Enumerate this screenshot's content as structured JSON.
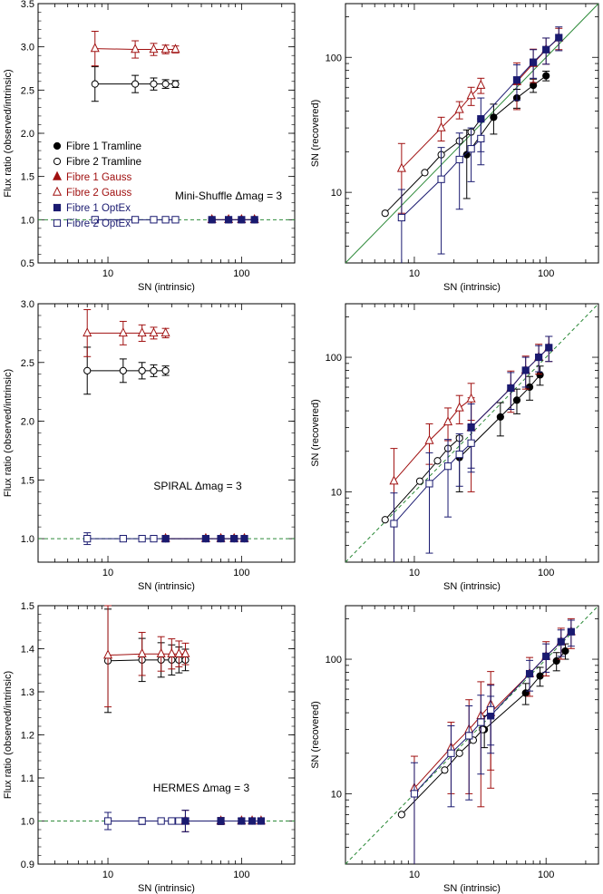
{
  "figure": {
    "xlabel": "SN (intrinsic)",
    "ylabel_ratio": "Flux ratio (observed/intrinsic)",
    "ylabel_sn": "SN (recovered)"
  },
  "legend": [
    {
      "label": "Fibre 1 Tramline",
      "marker": "filled-circle",
      "color": "#000000"
    },
    {
      "label": "Fibre 2 Tramline",
      "marker": "open-circle",
      "color": "#000000"
    },
    {
      "label": "Fibre 1 Gauss",
      "marker": "filled-triangle",
      "color": "#a01010"
    },
    {
      "label": "Fibre 2 Gauss",
      "marker": "open-triangle",
      "color": "#a01010"
    },
    {
      "label": "Fibre 1 OptEx",
      "marker": "filled-square",
      "color": "#1a1a70"
    },
    {
      "label": "Fibre 2 OptEx",
      "marker": "open-square",
      "color": "#1a1a70"
    }
  ],
  "colors": {
    "tramline": "#000000",
    "gauss": "#a01010",
    "optex": "#1a1a70",
    "refline_solid": "#2e8b3a",
    "refline_dashed": "#2e8b3a"
  },
  "chart_data": [
    {
      "type": "scatter",
      "panel": "mini-shuffle-ratio",
      "annotation": "Mini-Shuffle Δmag = 3",
      "xlabel": "SN (intrinsic)",
      "ylabel": "Flux ratio (observed/intrinsic)",
      "xscale": "log",
      "xlim": [
        3,
        250
      ],
      "ylim": [
        0.5,
        3.5
      ],
      "yticks": [
        "0.5",
        "1.0",
        "1.5",
        "2.0",
        "2.5",
        "3.0",
        "3.5"
      ],
      "xticks": [
        "10",
        "100"
      ],
      "refline": {
        "y": 1.0,
        "style": "dashed"
      },
      "series": [
        {
          "name": "Fibre 2 Tramline",
          "x": [
            8,
            16,
            22,
            27,
            32
          ],
          "y": [
            2.57,
            2.57,
            2.57,
            2.57,
            2.57
          ],
          "err": [
            0.2,
            0.1,
            0.07,
            0.05,
            0.04
          ]
        },
        {
          "name": "Fibre 2 Gauss",
          "x": [
            8,
            16,
            22,
            27,
            32
          ],
          "y": [
            2.98,
            2.97,
            2.97,
            2.97,
            2.97
          ],
          "err": [
            0.2,
            0.1,
            0.07,
            0.05,
            0.04
          ]
        },
        {
          "name": "Fibre 2 OptEx",
          "x": [
            8,
            16,
            22,
            27,
            32
          ],
          "y": [
            1.0,
            1.0,
            1.0,
            1.0,
            1.0
          ],
          "err": [
            0.03,
            0.015,
            0.01,
            0.008,
            0.006
          ]
        },
        {
          "name": "Fibre 1 Tramline",
          "x": [
            60,
            80,
            100,
            125
          ],
          "y": [
            1.0,
            1.0,
            1.0,
            1.0
          ],
          "err": [
            0.01,
            0.008,
            0.006,
            0.005
          ]
        },
        {
          "name": "Fibre 1 Gauss",
          "x": [
            60,
            80,
            100,
            125
          ],
          "y": [
            1.0,
            1.0,
            1.0,
            1.0
          ],
          "err": [
            0.01,
            0.008,
            0.006,
            0.005
          ]
        },
        {
          "name": "Fibre 1 OptEx",
          "x": [
            60,
            80,
            100,
            125
          ],
          "y": [
            1.0,
            1.0,
            1.0,
            1.0
          ],
          "err": [
            0.01,
            0.008,
            0.006,
            0.005
          ]
        }
      ]
    },
    {
      "type": "scatter",
      "panel": "mini-shuffle-sn",
      "xlabel": "SN (intrinsic)",
      "ylabel": "SN (recovered)",
      "xscale": "log",
      "yscale": "log",
      "xlim": [
        3,
        250
      ],
      "ylim": [
        3,
        250
      ],
      "xticks": [
        "10",
        "100"
      ],
      "yticks": [
        "10",
        "100"
      ],
      "refline": {
        "slope": 1,
        "style": "solid"
      },
      "series": [
        {
          "name": "Fibre 1 Tramline",
          "x": [
            25,
            40,
            60,
            80,
            100
          ],
          "y": [
            19,
            36,
            50,
            62,
            73
          ],
          "err": [
            10,
            9,
            8,
            7,
            6
          ]
        },
        {
          "name": "Fibre 2 Tramline",
          "x": [
            6,
            12,
            16,
            22,
            27,
            32
          ],
          "y": [
            7,
            14,
            19,
            24,
            28,
            35
          ],
          "err": [
            0,
            0,
            0,
            0,
            0,
            0
          ]
        },
        {
          "name": "Fibre 1 Gauss",
          "x": [
            60,
            80,
            100,
            125
          ],
          "y": [
            66,
            90,
            114,
            139
          ],
          "err": [
            25,
            25,
            25,
            25
          ]
        },
        {
          "name": "Fibre 2 Gauss",
          "x": [
            8,
            16,
            22,
            27,
            32
          ],
          "y": [
            15,
            30,
            41,
            52,
            62
          ],
          "err": [
            8,
            6,
            6,
            8,
            8
          ]
        },
        {
          "name": "Fibre 1 OptEx",
          "x": [
            32,
            60,
            80,
            100,
            125
          ],
          "y": [
            35,
            68,
            92,
            114,
            140
          ],
          "err": [
            15,
            20,
            22,
            25,
            28
          ]
        },
        {
          "name": "Fibre 2 OptEx",
          "x": [
            8,
            16,
            22,
            27,
            32
          ],
          "y": [
            6.5,
            12.5,
            17.5,
            21,
            25
          ],
          "err": [
            4,
            9,
            10,
            9,
            9
          ]
        }
      ]
    },
    {
      "type": "scatter",
      "panel": "spiral-ratio",
      "annotation": "SPIRAL Δmag = 3",
      "xlabel": "SN (intrinsic)",
      "ylabel": "Flux ratio (observed/intrinsic)",
      "xscale": "log",
      "xlim": [
        3,
        250
      ],
      "ylim": [
        0.8,
        3.0
      ],
      "yticks": [
        "1.0",
        "1.5",
        "2.0",
        "2.5",
        "3.0"
      ],
      "xticks": [
        "10",
        "100"
      ],
      "refline": {
        "y": 1.0,
        "style": "dashed"
      },
      "series": [
        {
          "name": "Fibre 2 Tramline",
          "x": [
            7,
            13,
            18,
            22,
            27
          ],
          "y": [
            2.43,
            2.43,
            2.43,
            2.43,
            2.43
          ],
          "err": [
            0.2,
            0.1,
            0.07,
            0.05,
            0.04
          ]
        },
        {
          "name": "Fibre 2 Gauss",
          "x": [
            7,
            13,
            18,
            22,
            27
          ],
          "y": [
            2.75,
            2.75,
            2.75,
            2.75,
            2.75
          ],
          "err": [
            0.2,
            0.1,
            0.07,
            0.05,
            0.04
          ]
        },
        {
          "name": "Fibre 2 OptEx",
          "x": [
            7,
            13,
            18,
            22,
            27
          ],
          "y": [
            1.0,
            1.0,
            1.0,
            1.0,
            1.0
          ],
          "err": [
            0.05,
            0.02,
            0.015,
            0.01,
            0.008
          ]
        },
        {
          "name": "Fibre 1 Tramline",
          "x": [
            27,
            54,
            70,
            88,
            105
          ],
          "y": [
            1.0,
            1.0,
            1.0,
            1.0,
            1.0
          ],
          "err": [
            0.02,
            0.01,
            0.008,
            0.006,
            0.005
          ]
        },
        {
          "name": "Fibre 1 Gauss",
          "x": [
            27,
            54,
            70,
            88,
            105
          ],
          "y": [
            1.0,
            1.0,
            1.0,
            1.0,
            1.0
          ],
          "err": [
            0.02,
            0.01,
            0.008,
            0.006,
            0.005
          ]
        },
        {
          "name": "Fibre 1 OptEx",
          "x": [
            27,
            54,
            70,
            88,
            105
          ],
          "y": [
            1.0,
            1.0,
            1.0,
            1.0,
            1.0
          ],
          "err": [
            0.02,
            0.01,
            0.008,
            0.006,
            0.005
          ]
        }
      ]
    },
    {
      "type": "scatter",
      "panel": "spiral-sn",
      "xlabel": "SN (intrinsic)",
      "ylabel": "SN (recovered)",
      "xscale": "log",
      "yscale": "log",
      "xlim": [
        3,
        250
      ],
      "ylim": [
        3,
        250
      ],
      "xticks": [
        "10",
        "100"
      ],
      "yticks": [
        "10",
        "100"
      ],
      "refline": {
        "slope": 1,
        "style": "dashed"
      },
      "series": [
        {
          "name": "Fibre 1 Tramline",
          "x": [
            22,
            45,
            60,
            75,
            90
          ],
          "y": [
            18,
            36,
            48,
            60,
            74
          ],
          "err": [
            8,
            10,
            10,
            12,
            12
          ]
        },
        {
          "name": "Fibre 2 Tramline",
          "x": [
            6,
            11,
            15,
            18,
            22
          ],
          "y": [
            6.2,
            12,
            17,
            21,
            25
          ],
          "err": [
            0,
            0,
            0,
            0,
            0
          ]
        },
        {
          "name": "Fibre 1 Gauss",
          "x": [
            27,
            54,
            70,
            88,
            105
          ],
          "y": [
            30,
            59,
            80,
            100,
            118
          ],
          "err": [
            20,
            20,
            22,
            25,
            25
          ]
        },
        {
          "name": "Fibre 2 Gauss",
          "x": [
            7,
            13,
            18,
            22,
            27
          ],
          "y": [
            12,
            24,
            33,
            42,
            49
          ],
          "err": [
            9,
            8,
            9,
            10,
            15
          ]
        },
        {
          "name": "Fibre 1 OptEx",
          "x": [
            27,
            54,
            70,
            88,
            105
          ],
          "y": [
            30,
            59,
            80,
            100,
            118
          ],
          "err": [
            15,
            18,
            20,
            22,
            25
          ]
        },
        {
          "name": "Fibre 2 OptEx",
          "x": [
            7,
            13,
            18,
            22,
            27
          ],
          "y": [
            5.8,
            11.5,
            15.5,
            19,
            23
          ],
          "err": [
            4,
            8,
            9,
            8,
            9
          ]
        }
      ]
    },
    {
      "type": "scatter",
      "panel": "hermes-ratio",
      "annotation": "HERMES Δmag = 3",
      "xlabel": "SN (intrinsic)",
      "ylabel": "Flux ratio (observed/intrinsic)",
      "xscale": "log",
      "xlim": [
        3,
        250
      ],
      "ylim": [
        0.9,
        1.5
      ],
      "yticks": [
        "0.9",
        "1.0",
        "1.1",
        "1.2",
        "1.3",
        "1.4",
        "1.5"
      ],
      "xticks": [
        "10",
        "100"
      ],
      "refline": {
        "y": 1.0,
        "style": "dashed"
      },
      "series": [
        {
          "name": "Fibre 2 Tramline",
          "x": [
            10,
            18,
            25,
            30,
            34,
            38
          ],
          "y": [
            1.372,
            1.374,
            1.374,
            1.374,
            1.374,
            1.374
          ],
          "err": [
            0.12,
            0.05,
            0.04,
            0.035,
            0.03,
            0.025
          ]
        },
        {
          "name": "Fibre 2 Gauss",
          "x": [
            10,
            18,
            25,
            30,
            34,
            38
          ],
          "y": [
            1.385,
            1.388,
            1.388,
            1.388,
            1.388,
            1.388
          ],
          "err": [
            0.12,
            0.05,
            0.04,
            0.035,
            0.03,
            0.025
          ]
        },
        {
          "name": "Fibre 2 OptEx",
          "x": [
            10,
            18,
            25,
            30,
            34,
            38
          ],
          "y": [
            1.0,
            1.0,
            1.0,
            1.0,
            1.0,
            1.0
          ],
          "err": [
            0.02,
            0.008,
            0.005,
            0.004,
            0.004,
            0.003
          ]
        },
        {
          "name": "Fibre 1 Tramline",
          "x": [
            38,
            70,
            100,
            120,
            140
          ],
          "y": [
            1.0,
            1.0,
            1.0,
            1.0,
            1.0
          ],
          "err": [
            0.025,
            0.008,
            0.006,
            0.004,
            0.003
          ]
        },
        {
          "name": "Fibre 1 Gauss",
          "x": [
            38,
            70,
            100,
            120,
            140
          ],
          "y": [
            1.0,
            1.0,
            1.0,
            1.0,
            1.0
          ],
          "err": [
            0.025,
            0.008,
            0.006,
            0.004,
            0.003
          ]
        },
        {
          "name": "Fibre 1 OptEx",
          "x": [
            38,
            70,
            100,
            120,
            140
          ],
          "y": [
            1.0,
            1.0,
            1.0,
            1.0,
            1.0
          ],
          "err": [
            0.025,
            0.008,
            0.006,
            0.004,
            0.003
          ]
        }
      ]
    },
    {
      "type": "scatter",
      "panel": "hermes-sn",
      "xlabel": "SN (intrinsic)",
      "ylabel": "SN (recovered)",
      "xscale": "log",
      "yscale": "log",
      "xlim": [
        3,
        250
      ],
      "ylim": [
        3,
        250
      ],
      "xticks": [
        "10",
        "100"
      ],
      "yticks": [
        "10",
        "100"
      ],
      "refline": {
        "slope": 1,
        "style": "dashed"
      },
      "series": [
        {
          "name": "Fibre 1 Tramline",
          "x": [
            34,
            70,
            90,
            120,
            140
          ],
          "y": [
            30,
            56,
            75,
            97,
            115
          ],
          "err": [
            8,
            10,
            12,
            15,
            15
          ]
        },
        {
          "name": "Fibre 2 Tramline",
          "x": [
            8,
            17,
            22,
            28,
            33
          ],
          "y": [
            7,
            15,
            20,
            25,
            30
          ],
          "err": [
            0,
            0,
            0,
            0,
            0
          ]
        },
        {
          "name": "Fibre 1 Gauss",
          "x": [
            38,
            75,
            100,
            130,
            155
          ],
          "y": [
            40,
            78,
            105,
            135,
            160
          ],
          "err": [
            25,
            25,
            30,
            35,
            40
          ]
        },
        {
          "name": "Fibre 2 Gauss",
          "x": [
            10,
            19,
            26,
            32,
            38
          ],
          "y": [
            11,
            22,
            30,
            38,
            46
          ],
          "err": [
            8,
            12,
            20,
            30,
            35
          ]
        },
        {
          "name": "Fibre 1 OptEx",
          "x": [
            38,
            75,
            100,
            130,
            155
          ],
          "y": [
            38,
            78,
            105,
            135,
            160
          ],
          "err": [
            15,
            20,
            25,
            30,
            35
          ]
        },
        {
          "name": "Fibre 2 OptEx",
          "x": [
            10,
            19,
            26,
            32,
            38
          ],
          "y": [
            10,
            20,
            27,
            34,
            42
          ],
          "err": [
            7,
            12,
            18,
            20,
            22
          ]
        }
      ]
    }
  ]
}
